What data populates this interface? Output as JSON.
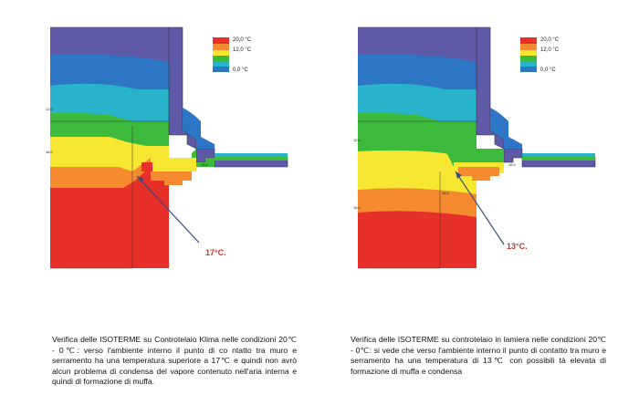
{
  "legend": {
    "max": "20,0 °C",
    "mid": "12,0 °C",
    "min": "0,0 °C"
  },
  "colors": {
    "red": "#e8302a",
    "orange": "#f58a2e",
    "yellow": "#f7e733",
    "green": "#3dba3c",
    "teal": "#27b3c9",
    "blue": "#2d76c5",
    "purple": "#5e5aa8",
    "arrow": "#3a4a7a",
    "callout": "#c0392b"
  },
  "panels": [
    {
      "id": "klima",
      "callout": "17°C.",
      "iso_labels": [
        "12,0",
        "16,0",
        "16,0"
      ],
      "caption": "Verifica delle ISOTERME su Controtelaio Klima nelle condizioni 20℃ - 0℃: verso l'ambiente interno il punto di co ntatto tra muro e serramento ha una  temperatura superiore a 17℃ e quindi non avrò alcun problema di condensa del vapore contenuto nell'aria interna e quindi di formazione di muffa."
    },
    {
      "id": "lamiera",
      "callout": "13°C.",
      "iso_labels": [
        "12,0",
        "16,0",
        "16,0",
        "16,0"
      ],
      "caption": "Verifica delle ISOTERME su controtelaio in lamiera nelle condizioni 20℃ - 0℃: si vede che verso  l'ambiente interno il punto di contatto tra muro e serramento ha una temperatura di 13℃ con possibili tà elevata di formazione di muffa e condensa"
    }
  ]
}
